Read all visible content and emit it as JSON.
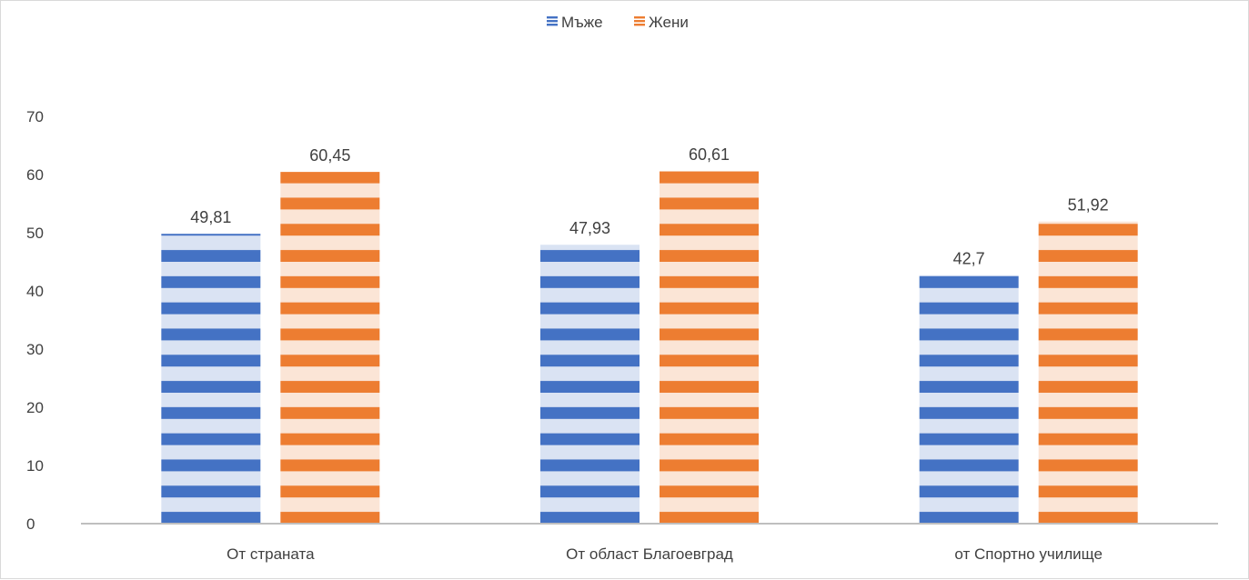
{
  "chart_data": {
    "type": "bar",
    "title": "",
    "xlabel": "",
    "ylabel": "",
    "categories": [
      "От страната",
      "От област Благоевград",
      "от Спортно училище"
    ],
    "series": [
      {
        "name": "Мъже",
        "values": [
          49.81,
          47.93,
          42.7
        ],
        "labels": [
          "49,81",
          "47,93",
          "42,7"
        ],
        "color": "#4472c4",
        "light_color": "#dae3f3"
      },
      {
        "name": "Жени",
        "values": [
          60.45,
          60.61,
          51.92
        ],
        "labels": [
          "60,45",
          "60,61",
          "51,92"
        ],
        "color": "#ed7d31",
        "light_color": "#fbe5d6"
      }
    ],
    "ylim": [
      0,
      70
    ],
    "yticks": [
      "0",
      "10",
      "20",
      "30",
      "40",
      "50",
      "60",
      "70"
    ],
    "grid": false,
    "legend_position": "top",
    "bar_pattern": "horizontal stripes",
    "axis_color": "#bfbfbf",
    "text_color": "#404040"
  }
}
